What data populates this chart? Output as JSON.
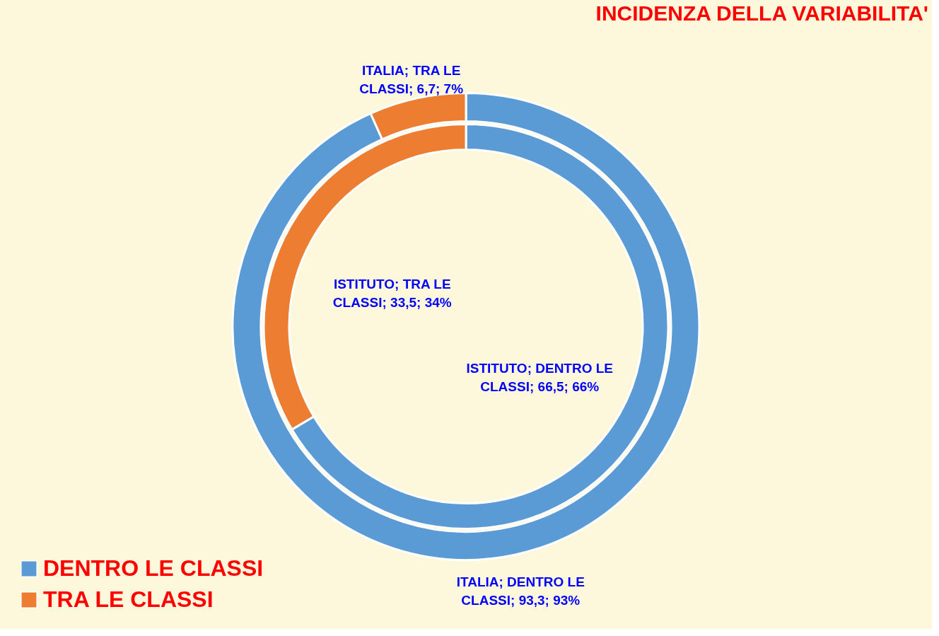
{
  "chart_data": {
    "type": "donut",
    "title": "INCIDENZA DELLA VARIABILITA'",
    "categories": [
      "DENTRO LE CLASSI",
      "TRA LE CLASSI"
    ],
    "colors": [
      "#5b9bd5",
      "#ed7d31"
    ],
    "series": [
      {
        "values": [
          93.3,
          6.7
        ],
        "value_labels": [
          "ITALIA; DENTRO LE CLASSI; 93,3; 93%",
          "ITALIA; TRA LE CLASSI; 6,7; 7%"
        ]
      },
      {
        "values": [
          66.5,
          33.5
        ],
        "value_labels": [
          "ISTITUTO; DENTRO LE CLASSI; 66,5; 66%",
          "ISTITUTO; TRA LE CLASSI; 33,5; 34%"
        ]
      }
    ],
    "legend": "bottom left"
  }
}
